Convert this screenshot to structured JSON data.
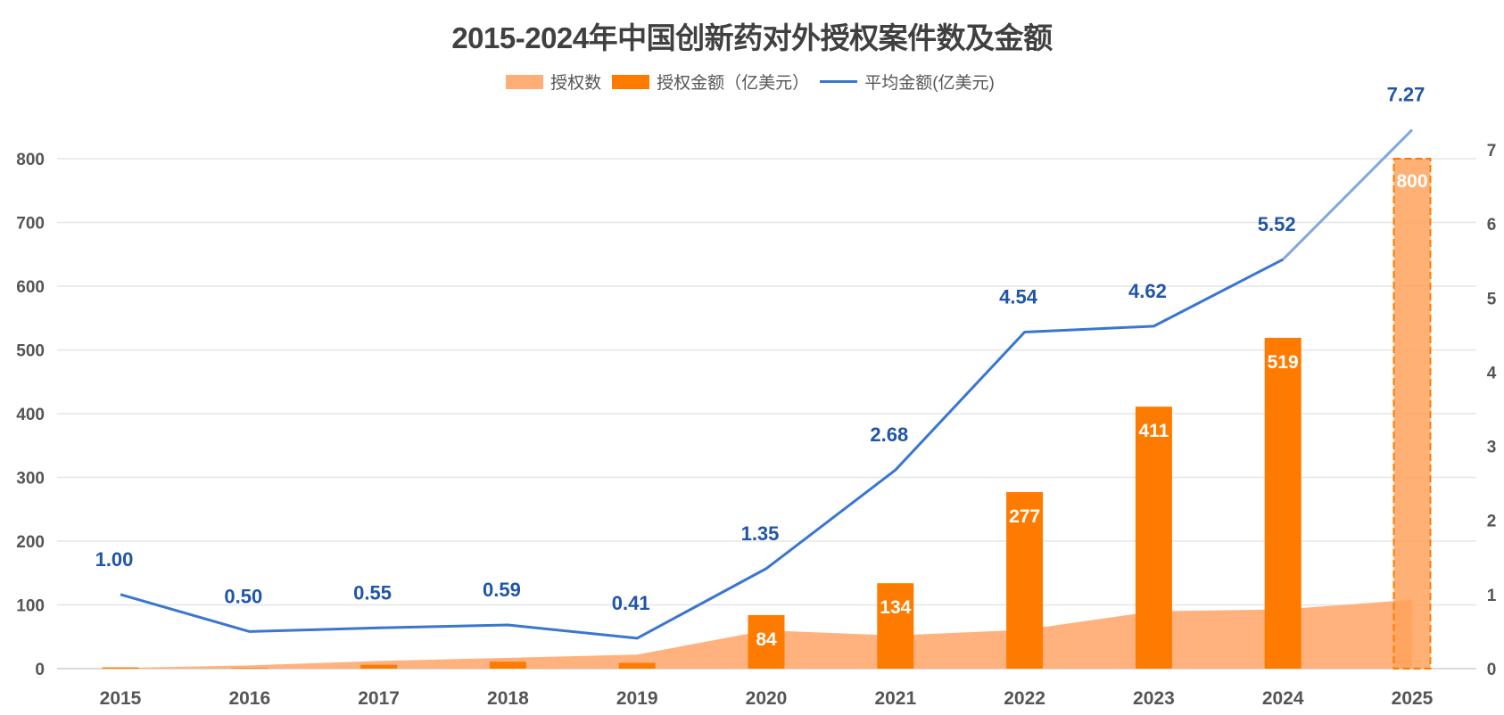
{
  "chart_data": {
    "type": "bar",
    "title": "2015-2024年中国创新药对外授权案件数及金额",
    "categories": [
      "2015",
      "2016",
      "2017",
      "2018",
      "2019",
      "2020",
      "2021",
      "2022",
      "2023",
      "2024",
      "2025"
    ],
    "left_axis": {
      "min": 0,
      "max": 800,
      "ticks": [
        0,
        100,
        200,
        300,
        400,
        500,
        600,
        700,
        800
      ]
    },
    "right_axis": {
      "min": 0,
      "max": 7,
      "ticks": [
        0,
        1,
        2,
        3,
        4,
        5,
        6,
        7
      ]
    },
    "grid": true,
    "legend_position": "top-center",
    "series": [
      {
        "name": "授权数",
        "type": "area",
        "axis": "left",
        "color": "#FFAE76",
        "values": [
          1,
          5,
          12,
          17,
          22,
          60,
          52,
          61,
          90,
          93,
          108
        ]
      },
      {
        "name": "授权金额（亿美元）",
        "type": "bar",
        "axis": "left",
        "color": "#FF7B00",
        "values": [
          2,
          1,
          6,
          11,
          9,
          84,
          134,
          277,
          411,
          519,
          800
        ],
        "data_labels": [
          "",
          "",
          "",
          "",
          "",
          "84",
          "134",
          "277",
          "411",
          "519",
          "800"
        ],
        "projected_last": true,
        "projected_color": "#FFA25C"
      },
      {
        "name": "平均金额(亿美元)",
        "type": "line",
        "axis": "right",
        "color": "#3A76D0",
        "values": [
          1.0,
          0.5,
          0.55,
          0.59,
          0.41,
          1.35,
          2.68,
          4.54,
          4.62,
          5.52,
          7.27
        ],
        "data_labels": [
          "1.00",
          "0.50",
          "0.55",
          "0.59",
          "0.41",
          "1.35",
          "2.68",
          "4.54",
          "4.62",
          "5.52",
          "7.27"
        ],
        "projected_last": true
      }
    ]
  },
  "legend": [
    {
      "label": "授权数",
      "kind": "box",
      "color": "#FFAE76"
    },
    {
      "label": "授权金额（亿美元）",
      "kind": "box",
      "color": "#FF7B00"
    },
    {
      "label": "平均金额(亿美元)",
      "kind": "line",
      "color": "#3A76D0"
    }
  ]
}
